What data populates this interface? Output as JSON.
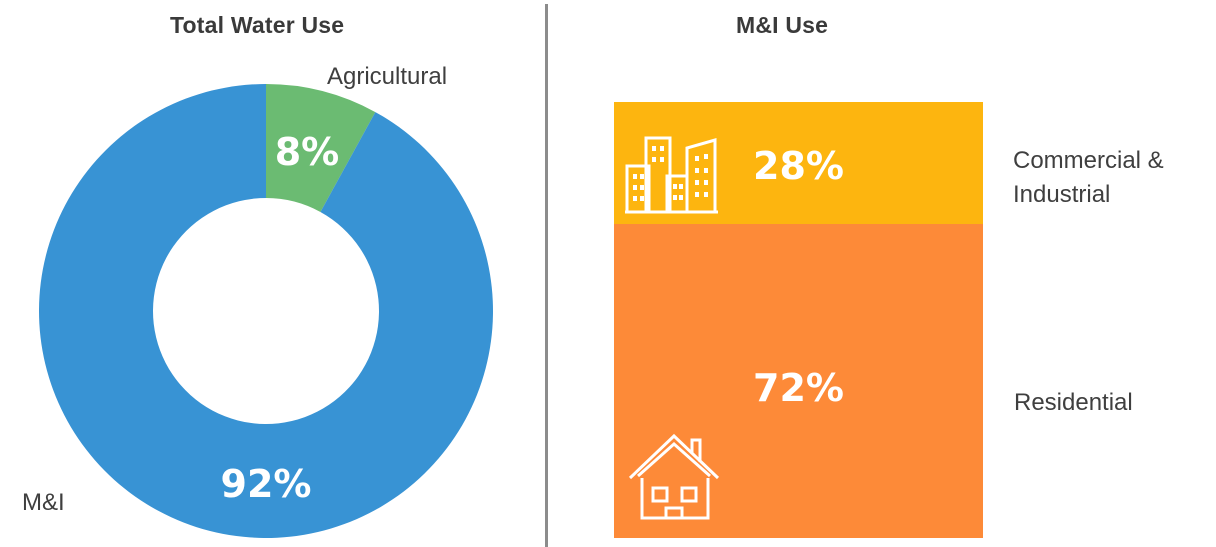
{
  "left_title": "Total Water Use",
  "right_title": "M&I Use",
  "colors": {
    "agricultural": "#6bbb72",
    "mi": "#3893d4",
    "commercial_industrial": "#fdb50f",
    "residential": "#fd8a38"
  },
  "chart_data": [
    {
      "type": "pie",
      "title": "Total Water Use",
      "categories": [
        "Agricultural",
        "M&I"
      ],
      "values": [
        8,
        92
      ],
      "value_labels": [
        "8%",
        "92%"
      ]
    },
    {
      "type": "bar",
      "title": "M&I Use",
      "categories": [
        "Commercial & Industrial",
        "Residential"
      ],
      "values": [
        28,
        72
      ],
      "value_labels": [
        "28%",
        "72%"
      ],
      "stacked": true,
      "icons": [
        "buildings-icon",
        "house-icon"
      ]
    }
  ]
}
